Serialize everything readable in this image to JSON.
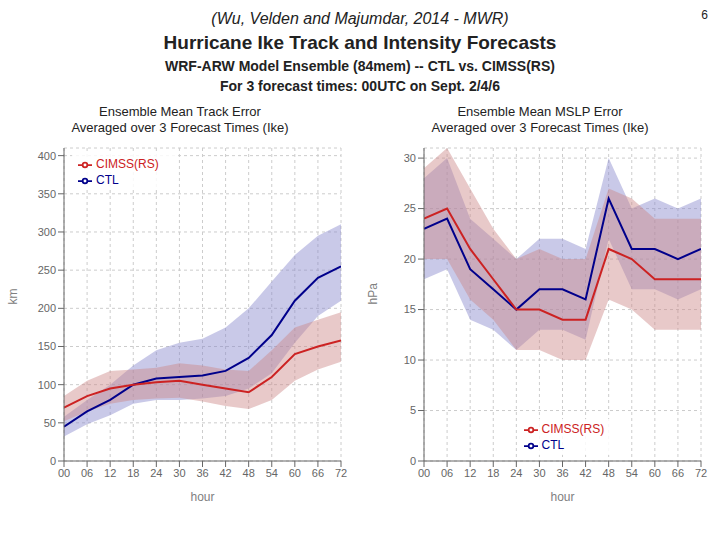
{
  "title": "Hurricane Ike Track and Intensity Forecasts",
  "subtitle": [
    "WRF-ARW Model Ensemble (84mem) -- CTL vs. CIMSS(RS)",
    "For 3 forecast times: 00UTC on Sept. 2/4/6"
  ],
  "annotations": [
    "(Wu, Velden and Majumdar, 2014 - MWR)",
    "6"
  ],
  "chart_data": [
    {
      "type": "line",
      "title": "Ensemble Mean Track Error",
      "subtitle": "Averaged over 3 Forecast Times (Ike)",
      "x": [
        0,
        6,
        12,
        18,
        24,
        30,
        36,
        42,
        48,
        54,
        60,
        66,
        72
      ],
      "xlabel": "hour",
      "ylabel": "km",
      "xlim": [
        0,
        72
      ],
      "xticks": [
        {
          "value": 0,
          "label": "00"
        },
        {
          "value": 6,
          "label": "06"
        },
        12,
        18,
        24,
        30,
        36,
        42,
        48,
        54,
        60,
        66,
        72
      ],
      "ylim": [
        0,
        410
      ],
      "yticks": [
        0,
        50,
        100,
        150,
        200,
        250,
        300,
        350,
        400
      ],
      "grid": true,
      "legend": "upper left",
      "series": [
        {
          "name": "CTL",
          "color": "#00008B",
          "values": [
            45,
            65,
            80,
            100,
            108,
            110,
            112,
            118,
            135,
            165,
            210,
            240,
            255
          ],
          "band": {
            "lower": [
              32,
              48,
              60,
              75,
              80,
              80,
              82,
              85,
              95,
              115,
              155,
              190,
              210
            ],
            "upper": [
              58,
              80,
              100,
              125,
              145,
              155,
              160,
              175,
              200,
              235,
              270,
              295,
              310
            ],
            "color": "#8888CC"
          }
        },
        {
          "name": "CIMSS(RS)",
          "color": "#CC2222",
          "values": [
            70,
            85,
            95,
            100,
            103,
            105,
            100,
            95,
            90,
            110,
            140,
            150,
            158
          ],
          "band": {
            "lower": [
              52,
              65,
              75,
              80,
              82,
              83,
              78,
              72,
              68,
              80,
              105,
              120,
              130
            ],
            "upper": [
              85,
              105,
              118,
              120,
              122,
              128,
              125,
              120,
              118,
              145,
              175,
              185,
              195
            ],
            "color": "#CC8888"
          }
        }
      ]
    },
    {
      "type": "line",
      "title": "Ensemble Mean MSLP Error",
      "subtitle": "Averaged over 3 Forecast Times (Ike)",
      "x": [
        0,
        6,
        12,
        18,
        24,
        30,
        36,
        42,
        48,
        54,
        60,
        66,
        72
      ],
      "xlabel": "hour",
      "ylabel": "hPa",
      "xlim": [
        0,
        72
      ],
      "xticks": [
        {
          "value": 0,
          "label": "00"
        },
        {
          "value": 6,
          "label": "06"
        },
        12,
        18,
        24,
        30,
        36,
        42,
        48,
        54,
        60,
        66,
        72
      ],
      "ylim": [
        0,
        31
      ],
      "yticks": [
        0,
        5,
        10,
        15,
        20,
        25,
        30
      ],
      "grid": true,
      "legend": "lower center",
      "series": [
        {
          "name": "CTL",
          "color": "#00008B",
          "values": [
            23,
            24,
            19,
            17,
            15,
            17,
            17,
            16,
            26,
            21,
            21,
            20,
            21
          ],
          "band": {
            "lower": [
              18,
              19,
              14,
              13,
              11,
              13,
              13,
              12,
              22,
              17,
              17,
              16,
              17
            ],
            "upper": [
              28,
              30,
              24,
              22,
              20,
              22,
              22,
              21,
              30,
              25,
              26,
              25,
              26
            ],
            "color": "#8888CC"
          }
        },
        {
          "name": "CIMSS(RS)",
          "color": "#CC2222",
          "values": [
            24,
            25,
            21,
            18,
            15,
            15,
            14,
            14,
            21,
            20,
            18,
            18,
            18
          ],
          "band": {
            "lower": [
              20,
              20,
              16,
              14,
              11,
              11,
              10,
              10,
              16,
              15,
              13,
              13,
              13
            ],
            "upper": [
              29,
              31,
              27,
              23,
              20,
              21,
              20,
              20,
              27,
              26,
              24,
              24,
              24
            ],
            "color": "#CC8888"
          }
        }
      ]
    }
  ]
}
